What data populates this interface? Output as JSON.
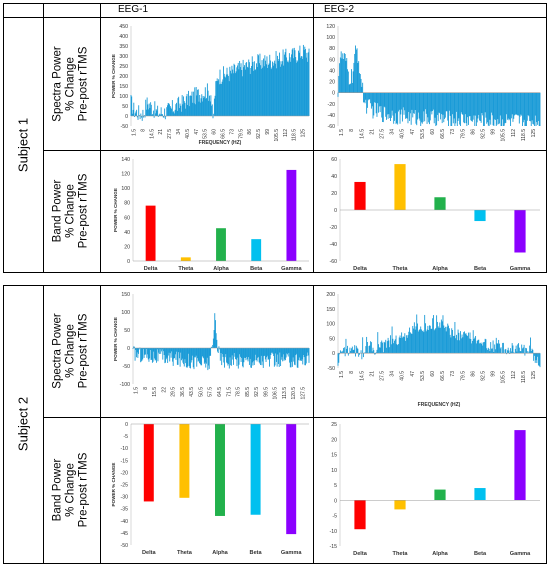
{
  "headers": {
    "col1": "EEG-1",
    "col2": "EEG-2"
  },
  "subjects": [
    "Subject 1",
    "Subject 2"
  ],
  "row_labels": {
    "spectra": [
      "Spectra Power",
      "% Change",
      "Pre-post rTMS"
    ],
    "band": [
      "Band Power",
      "% Change",
      "Pre-post rTMS"
    ]
  },
  "colors": {
    "spectra": "#1a9bd7",
    "Delta": "#ff0000",
    "Theta": "#ffc000",
    "Alpha": "#22b14c",
    "Beta": "#00c0ef",
    "Gamma": "#8b00ff"
  },
  "chart_data": [
    {
      "id": "s1_eeg1_spectra",
      "type": "area",
      "ylabel": "POWER % CHANGE",
      "xlabel": "FREQUENCY (HZ)",
      "ylim": [
        -50,
        450
      ],
      "yticks": [
        -50,
        0,
        50,
        100,
        150,
        200,
        250,
        300,
        350,
        400,
        450
      ],
      "xticks": [
        "1.5",
        "8",
        "14.5",
        "21",
        "27.5",
        "34",
        "40.5",
        "47",
        "53.5",
        "60",
        "66.5",
        "73",
        "79.5",
        "86",
        "92.5",
        "99",
        "105.5",
        "112",
        "118.5",
        "125"
      ],
      "xlim": [
        1,
        128
      ],
      "anchors": [
        [
          1,
          70
        ],
        [
          3,
          30
        ],
        [
          6,
          15
        ],
        [
          10,
          10
        ],
        [
          12,
          60
        ],
        [
          13,
          65
        ],
        [
          15,
          50
        ],
        [
          20,
          15
        ],
        [
          25,
          20
        ],
        [
          30,
          35
        ],
        [
          35,
          55
        ],
        [
          40,
          75
        ],
        [
          45,
          95
        ],
        [
          50,
          110
        ],
        [
          55,
          125
        ],
        [
          58,
          110
        ],
        [
          59.5,
          -30
        ],
        [
          61,
          120
        ],
        [
          63,
          200
        ],
        [
          70,
          210
        ],
        [
          80,
          240
        ],
        [
          90,
          265
        ],
        [
          100,
          275
        ],
        [
          110,
          290
        ],
        [
          120,
          310
        ],
        [
          125,
          325
        ],
        [
          128,
          300
        ]
      ]
    },
    {
      "id": "s1_eeg2_spectra",
      "type": "area",
      "ylabel": "",
      "xlabel": "",
      "ylim": [
        -60,
        120
      ],
      "yticks": [
        -60,
        -40,
        -20,
        0,
        20,
        40,
        60,
        80,
        100,
        120
      ],
      "xticks": [
        "1.5",
        "8",
        "14.5",
        "21",
        "27.5",
        "34",
        "40.5",
        "47",
        "53.5",
        "60",
        "66.5",
        "73",
        "79.5",
        "86",
        "92.5",
        "99",
        "105.5",
        "112",
        "118.5",
        "125"
      ],
      "xlim": [
        1,
        128
      ],
      "anchors": [
        [
          1,
          5
        ],
        [
          2,
          60
        ],
        [
          4,
          65
        ],
        [
          6,
          55
        ],
        [
          8,
          25
        ],
        [
          10,
          30
        ],
        [
          12,
          70
        ],
        [
          13,
          75
        ],
        [
          15,
          40
        ],
        [
          16,
          10
        ],
        [
          18,
          -20
        ],
        [
          22,
          -30
        ],
        [
          30,
          -38
        ],
        [
          40,
          -42
        ],
        [
          50,
          -45
        ],
        [
          60,
          -46
        ],
        [
          70,
          -48
        ],
        [
          80,
          -48
        ],
        [
          90,
          -50
        ],
        [
          100,
          -50
        ],
        [
          110,
          -52
        ],
        [
          120,
          -53
        ],
        [
          128,
          -52
        ]
      ]
    },
    {
      "id": "s1_eeg1_band",
      "type": "bar",
      "ylabel": "POWER % CHANGE",
      "categories": [
        "Delta",
        "Theta",
        "Alpha",
        "Beta",
        "Gamma"
      ],
      "values": [
        76,
        5,
        45,
        30,
        125
      ],
      "ylim": [
        0,
        140
      ],
      "yticks": [
        0,
        20,
        40,
        60,
        80,
        100,
        120,
        140
      ]
    },
    {
      "id": "s1_eeg2_band",
      "type": "bar",
      "ylabel": "",
      "categories": [
        "Delta",
        "Theta",
        "Alpha",
        "Beta",
        "Gamma"
      ],
      "values": [
        33,
        54,
        15,
        -13,
        -50
      ],
      "ylim": [
        -60,
        60
      ],
      "yticks": [
        -60,
        -40,
        -20,
        0,
        20,
        40,
        60
      ]
    },
    {
      "id": "s2_eeg1_spectra",
      "type": "area",
      "ylabel": "POWER % CHANGE",
      "xlabel": "",
      "ylim": [
        -100,
        150
      ],
      "yticks": [
        -100,
        -50,
        0,
        50,
        100,
        150
      ],
      "xticks": [
        "1.5",
        "8",
        "15.5",
        "22",
        "29.5",
        "36.5",
        "43.5",
        "50.5",
        "57.5",
        "64.5",
        "71.5",
        "78.5",
        "85.5",
        "92.5",
        "99.5",
        "106.5",
        "113.5",
        "120.5",
        "127.5"
      ],
      "xlim": [
        1,
        128
      ],
      "anchors": [
        [
          1,
          -15
        ],
        [
          10,
          -20
        ],
        [
          20,
          -25
        ],
        [
          30,
          -30
        ],
        [
          40,
          -35
        ],
        [
          50,
          -40
        ],
        [
          56,
          -45
        ],
        [
          58,
          -10
        ],
        [
          59,
          20
        ],
        [
          60,
          90
        ],
        [
          61,
          60
        ],
        [
          62,
          5
        ],
        [
          64,
          -30
        ],
        [
          70,
          -35
        ],
        [
          80,
          -35
        ],
        [
          90,
          -35
        ],
        [
          100,
          -35
        ],
        [
          110,
          -35
        ],
        [
          120,
          -35
        ],
        [
          128,
          -30
        ]
      ]
    },
    {
      "id": "s2_eeg2_spectra",
      "type": "area",
      "ylabel": "",
      "xlabel": "FREQUENCY (HZ)",
      "ylim": [
        -50,
        200
      ],
      "yticks": [
        -50,
        0,
        50,
        100,
        150,
        200
      ],
      "xticks": [
        "1.5",
        "8",
        "14.5",
        "21",
        "27.5",
        "34",
        "40.5",
        "47",
        "53.5",
        "60",
        "66.5",
        "73",
        "79.5",
        "86",
        "92.5",
        "99",
        "105.5",
        "112",
        "118.5",
        "125"
      ],
      "xlim": [
        1,
        128
      ],
      "anchors": [
        [
          1,
          -20
        ],
        [
          5,
          10
        ],
        [
          10,
          15
        ],
        [
          15,
          -5
        ],
        [
          20,
          20
        ],
        [
          25,
          15
        ],
        [
          30,
          25
        ],
        [
          35,
          35
        ],
        [
          40,
          45
        ],
        [
          45,
          70
        ],
        [
          50,
          85
        ],
        [
          55,
          90
        ],
        [
          60,
          95
        ],
        [
          65,
          100
        ],
        [
          70,
          80
        ],
        [
          75,
          65
        ],
        [
          80,
          55
        ],
        [
          85,
          45
        ],
        [
          90,
          35
        ],
        [
          95,
          30
        ],
        [
          100,
          25
        ],
        [
          110,
          15
        ],
        [
          120,
          10
        ],
        [
          128,
          -25
        ]
      ]
    },
    {
      "id": "s2_eeg1_band",
      "type": "bar",
      "ylabel": "POWER % CHANGE",
      "categories": [
        "Delta",
        "Theta",
        "Alpha",
        "Beta",
        "Gamma"
      ],
      "values": [
        -32,
        -30.5,
        -38,
        -37.5,
        -45.5
      ],
      "ylim": [
        -50,
        0
      ],
      "yticks": [
        -50,
        -45,
        -40,
        -35,
        -30,
        -25,
        -20,
        -15,
        -10,
        -5,
        0
      ]
    },
    {
      "id": "s2_eeg2_band",
      "type": "bar",
      "ylabel": "",
      "categories": [
        "Delta",
        "Theta",
        "Alpha",
        "Beta",
        "Gamma"
      ],
      "values": [
        -9.5,
        -3,
        3.5,
        4,
        23
      ],
      "ylim": [
        -15,
        25
      ],
      "yticks": [
        -15,
        -10,
        -5,
        0,
        5,
        10,
        15,
        20,
        25
      ]
    }
  ]
}
